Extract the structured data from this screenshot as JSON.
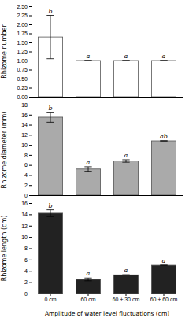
{
  "chart_data": [
    {
      "type": "bar",
      "ylabel": "Rhizome number",
      "categories": [
        "0 cm",
        "60 cm",
        "60 ± 30 cm",
        "60 ± 60 cm"
      ],
      "values": [
        1.65,
        1.0,
        1.0,
        1.0
      ],
      "errors": [
        0.6,
        0.0,
        0.0,
        0.0
      ],
      "annotations": [
        "b",
        "a",
        "a",
        "a"
      ],
      "ylim": [
        0,
        2.5
      ],
      "yticks": [
        {
          "value": 0.0,
          "label": "0.00"
        },
        0.25,
        {
          "value": 0.5,
          "label": "0.50"
        },
        0.75,
        {
          "value": 1.0,
          "label": "1.00"
        },
        1.25,
        {
          "value": 1.5,
          "label": "1.50"
        },
        1.75,
        {
          "value": 2.0,
          "label": "2.00"
        },
        2.25,
        {
          "value": 2.5,
          "label": "2.50"
        }
      ],
      "color": "#ffffff",
      "tick_labels": "y"
    },
    {
      "type": "bar",
      "ylabel": "Rhizome diameter (mm)",
      "categories": [
        "0 cm",
        "60 cm",
        "60 ± 30 cm",
        "60 ± 60 cm"
      ],
      "values": [
        15.5,
        5.2,
        6.8,
        10.8
      ],
      "errors": [
        1.0,
        0.45,
        0.25,
        0.0
      ],
      "annotations": [
        "b",
        "a",
        "a",
        "ab"
      ],
      "ylim": [
        0,
        18
      ],
      "yticks": [
        0,
        2,
        4,
        6,
        8,
        10,
        12,
        14,
        16,
        18
      ],
      "color": "#aaaaaa",
      "tick_labels": "y"
    },
    {
      "type": "bar",
      "xlabel": "Amplitude of water level fluctuations (cm)",
      "ylabel": "Rhizome length (cm)",
      "categories": [
        "0 cm",
        "60 cm",
        "60 ± 30 cm",
        "60 ± 60 cm"
      ],
      "values": [
        14.2,
        2.5,
        3.3,
        5.0
      ],
      "errors": [
        0.6,
        0.25,
        0.0,
        0.0
      ],
      "annotations": [
        "b",
        "a",
        "a",
        "a"
      ],
      "ylim": [
        0,
        16
      ],
      "yticks": [
        0,
        2,
        4,
        6,
        8,
        10,
        12,
        14,
        16
      ],
      "color": "#222222"
    }
  ]
}
